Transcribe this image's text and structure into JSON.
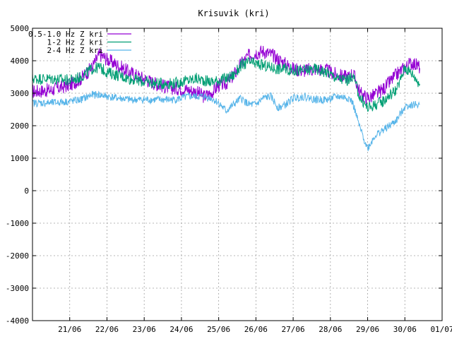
{
  "chart_data": {
    "type": "line",
    "title": "Krisuvik (kri)",
    "xlabel": "",
    "ylabel": "",
    "ylim": [
      -4000,
      5000
    ],
    "yticks": [
      -4000,
      -3000,
      -2000,
      -1000,
      0,
      1000,
      2000,
      3000,
      4000,
      5000
    ],
    "xlim": [
      "2024-06-20T12:00",
      "2024-07-01T12:00"
    ],
    "xticks": [
      "21/06",
      "22/06",
      "23/06",
      "24/06",
      "25/06",
      "26/06",
      "27/06",
      "28/06",
      "29/06",
      "30/06",
      "01/07"
    ],
    "x_tick_positions": [
      1,
      2,
      3,
      4,
      5,
      6,
      7,
      8,
      9,
      10,
      11
    ],
    "grid": true,
    "legend_position": "top-left",
    "series": [
      {
        "name": "0.5-1.0 Hz Z kri",
        "color": "#9400d3",
        "x": [
          0,
          0.5,
          1,
          1.3,
          1.6,
          1.8,
          2.0,
          2.3,
          2.6,
          3.0,
          3.4,
          3.8,
          4.0,
          4.2,
          4.4,
          4.6,
          4.8,
          5.0,
          5.2,
          5.4,
          5.6,
          5.8,
          6.0,
          6.2,
          6.4,
          6.6,
          6.8,
          7.0,
          7.3,
          7.6,
          7.9,
          8.2,
          8.5,
          8.6,
          8.8,
          9.0,
          9.2,
          9.4,
          9.6,
          9.8,
          10.0,
          10.2,
          10.4
        ],
        "values": [
          3050,
          3100,
          3250,
          3450,
          3800,
          4200,
          4050,
          3850,
          3650,
          3450,
          3250,
          3150,
          3150,
          3100,
          3050,
          2900,
          3000,
          3250,
          3300,
          3550,
          3900,
          4150,
          4250,
          4300,
          4200,
          4050,
          3900,
          3750,
          3700,
          3750,
          3700,
          3550,
          3500,
          3650,
          3000,
          2850,
          2950,
          3100,
          3350,
          3600,
          3800,
          3950,
          3800
        ]
      },
      {
        "name": "1-2 Hz Z kri",
        "color": "#009e73",
        "x": [
          0,
          0.5,
          1,
          1.3,
          1.6,
          1.8,
          2.0,
          2.3,
          2.6,
          3.0,
          3.4,
          3.8,
          4.0,
          4.2,
          4.4,
          4.6,
          4.8,
          5.0,
          5.2,
          5.4,
          5.6,
          5.8,
          6.0,
          6.2,
          6.4,
          6.6,
          6.8,
          7.0,
          7.3,
          7.6,
          7.9,
          8.2,
          8.5,
          8.6,
          8.8,
          9.0,
          9.2,
          9.4,
          9.6,
          9.8,
          10.0,
          10.2,
          10.4
        ],
        "values": [
          3450,
          3450,
          3400,
          3500,
          3750,
          3800,
          3650,
          3550,
          3450,
          3350,
          3300,
          3300,
          3350,
          3400,
          3450,
          3400,
          3350,
          3400,
          3450,
          3550,
          3850,
          3950,
          3900,
          3850,
          3800,
          3750,
          3750,
          3700,
          3700,
          3750,
          3650,
          3450,
          3400,
          3550,
          2850,
          2550,
          2650,
          2750,
          2950,
          3150,
          3800,
          3600,
          3300
        ]
      },
      {
        "name": "2-4 Hz Z kri",
        "color": "#56b4e9",
        "x": [
          0,
          0.5,
          1,
          1.3,
          1.6,
          1.8,
          2.0,
          2.3,
          2.6,
          3.0,
          3.4,
          3.8,
          4.0,
          4.2,
          4.4,
          4.6,
          4.8,
          5.0,
          5.2,
          5.4,
          5.6,
          5.8,
          6.0,
          6.2,
          6.4,
          6.6,
          6.8,
          7.0,
          7.3,
          7.6,
          7.9,
          8.2,
          8.5,
          8.6,
          8.8,
          9.0,
          9.2,
          9.4,
          9.6,
          9.8,
          10.0,
          10.2,
          10.4
        ],
        "values": [
          2700,
          2700,
          2750,
          2800,
          2950,
          2950,
          2900,
          2850,
          2800,
          2800,
          2800,
          2800,
          2850,
          2900,
          2900,
          2900,
          2850,
          2700,
          2450,
          2650,
          2850,
          2650,
          2650,
          2850,
          2900,
          2550,
          2650,
          2850,
          2900,
          2800,
          2800,
          2900,
          2850,
          2700,
          1900,
          1300,
          1700,
          1850,
          2000,
          2200,
          2600,
          2650,
          2650
        ]
      }
    ]
  }
}
